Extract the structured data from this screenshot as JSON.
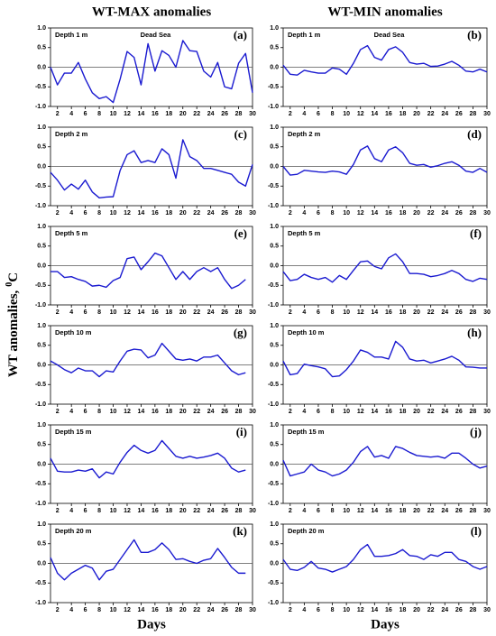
{
  "ylabel": {
    "text": "WT anomalies,",
    "sup": "0",
    "unit": "C"
  },
  "chart_data": [
    {
      "type": "line",
      "title": "WT-MAX anomalies",
      "depth": "Depth 1 m",
      "panel": "(a)",
      "note": "Dead Sea",
      "color": "#1a1ad0",
      "x": [
        1,
        2,
        3,
        4,
        5,
        6,
        7,
        8,
        9,
        10,
        11,
        12,
        13,
        14,
        15,
        16,
        17,
        18,
        19,
        20,
        21,
        22,
        23,
        24,
        25,
        26,
        27,
        28,
        29,
        30
      ],
      "values": [
        0.0,
        -0.45,
        -0.15,
        -0.15,
        0.12,
        -0.3,
        -0.65,
        -0.8,
        -0.75,
        -0.9,
        -0.3,
        0.4,
        0.25,
        -0.45,
        0.6,
        -0.1,
        0.42,
        0.3,
        0.0,
        0.68,
        0.42,
        0.4,
        -0.1,
        -0.25,
        0.12,
        -0.5,
        -0.55,
        0.1,
        0.35,
        -0.65
      ],
      "xlim": [
        1,
        30
      ],
      "xticks": [
        2,
        4,
        6,
        8,
        10,
        12,
        14,
        16,
        18,
        20,
        22,
        24,
        26,
        28,
        30
      ],
      "ylim": [
        -1,
        1
      ],
      "yticks": [
        {
          "value": -1,
          "label": "-1.0"
        },
        {
          "value": -0.5,
          "label": "-0.5"
        },
        {
          "value": 0,
          "label": "0.0"
        },
        {
          "value": 0.5,
          "label": "0.5"
        },
        {
          "value": 1,
          "label": "1.0"
        }
      ],
      "refline": 0
    },
    {
      "type": "line",
      "title": "WT-MIN anomalies",
      "depth": "Depth 1 m",
      "panel": "(b)",
      "note": "Dead Sea",
      "color": "#1a1ad0",
      "x": [
        1,
        2,
        3,
        4,
        5,
        6,
        7,
        8,
        9,
        10,
        11,
        12,
        13,
        14,
        15,
        16,
        17,
        18,
        19,
        20,
        21,
        22,
        23,
        24,
        25,
        26,
        27,
        28,
        29,
        30
      ],
      "values": [
        0.05,
        -0.18,
        -0.2,
        -0.08,
        -0.12,
        -0.15,
        -0.15,
        -0.02,
        -0.05,
        -0.18,
        0.1,
        0.45,
        0.55,
        0.25,
        0.18,
        0.45,
        0.52,
        0.38,
        0.12,
        0.08,
        0.1,
        0.02,
        0.03,
        0.08,
        0.15,
        0.05,
        -0.1,
        -0.12,
        -0.05,
        -0.12
      ],
      "xlim": [
        1,
        30
      ],
      "xticks": [
        2,
        4,
        6,
        8,
        10,
        12,
        14,
        16,
        18,
        20,
        22,
        24,
        26,
        28,
        30
      ],
      "ylim": [
        -1,
        1
      ],
      "yticks": [
        {
          "value": -1,
          "label": "-1.0"
        },
        {
          "value": -0.5,
          "label": "-0.5"
        },
        {
          "value": 0,
          "label": "0.0"
        },
        {
          "value": 0.5,
          "label": "0.5"
        },
        {
          "value": 1,
          "label": "1.0"
        }
      ],
      "refline": 0
    },
    {
      "type": "line",
      "depth": "Depth 2 m",
      "panel": "(c)",
      "color": "#1a1ad0",
      "x": [
        1,
        2,
        3,
        4,
        5,
        6,
        7,
        8,
        9,
        10,
        11,
        12,
        13,
        14,
        15,
        16,
        17,
        18,
        19,
        20,
        21,
        22,
        23,
        24,
        25,
        26,
        27,
        28,
        29,
        30
      ],
      "values": [
        -0.15,
        -0.35,
        -0.6,
        -0.45,
        -0.58,
        -0.35,
        -0.65,
        -0.8,
        -0.78,
        -0.77,
        -0.1,
        0.3,
        0.4,
        0.1,
        0.15,
        0.1,
        0.45,
        0.3,
        -0.3,
        0.68,
        0.25,
        0.15,
        -0.05,
        -0.05,
        -0.1,
        -0.15,
        -0.2,
        -0.4,
        -0.5,
        0.05
      ],
      "xlim": [
        1,
        30
      ],
      "xticks": [
        2,
        4,
        6,
        8,
        10,
        12,
        14,
        16,
        18,
        20,
        22,
        24,
        26,
        28,
        30
      ],
      "ylim": [
        -1,
        1
      ],
      "yticks": [
        {
          "value": -1,
          "label": "-1.0"
        },
        {
          "value": -0.5,
          "label": "-0.5"
        },
        {
          "value": 0,
          "label": "0.0"
        },
        {
          "value": 0.5,
          "label": "0.5"
        },
        {
          "value": 1,
          "label": "1.0"
        }
      ],
      "refline": 0
    },
    {
      "type": "line",
      "depth": "Depth 2 m",
      "panel": "(d)",
      "color": "#1a1ad0",
      "x": [
        1,
        2,
        3,
        4,
        5,
        6,
        7,
        8,
        9,
        10,
        11,
        12,
        13,
        14,
        15,
        16,
        17,
        18,
        19,
        20,
        21,
        22,
        23,
        24,
        25,
        26,
        27,
        28,
        29,
        30
      ],
      "values": [
        0.0,
        -0.22,
        -0.2,
        -0.1,
        -0.12,
        -0.14,
        -0.15,
        -0.12,
        -0.14,
        -0.2,
        0.05,
        0.42,
        0.52,
        0.2,
        0.12,
        0.42,
        0.5,
        0.35,
        0.08,
        0.03,
        0.05,
        -0.02,
        0.02,
        0.08,
        0.12,
        0.03,
        -0.12,
        -0.15,
        -0.05,
        -0.15
      ],
      "xlim": [
        1,
        30
      ],
      "xticks": [
        2,
        4,
        6,
        8,
        10,
        12,
        14,
        16,
        18,
        20,
        22,
        24,
        26,
        28,
        30
      ],
      "ylim": [
        -1,
        1
      ],
      "yticks": [
        {
          "value": -1,
          "label": "-1.0"
        },
        {
          "value": -0.5,
          "label": "-0.5"
        },
        {
          "value": 0,
          "label": "0.0"
        },
        {
          "value": 0.5,
          "label": "0.5"
        },
        {
          "value": 1,
          "label": "1.0"
        }
      ],
      "refline": 0
    },
    {
      "type": "line",
      "depth": "Depth 5 m",
      "panel": "(e)",
      "color": "#1a1ad0",
      "x": [
        1,
        2,
        3,
        4,
        5,
        6,
        7,
        8,
        9,
        10,
        11,
        12,
        13,
        14,
        15,
        16,
        17,
        18,
        19,
        20,
        21,
        22,
        23,
        24,
        25,
        26,
        27,
        28,
        29
      ],
      "values": [
        -0.15,
        -0.15,
        -0.3,
        -0.28,
        -0.35,
        -0.4,
        -0.52,
        -0.5,
        -0.55,
        -0.38,
        -0.3,
        0.18,
        0.22,
        -0.1,
        0.1,
        0.32,
        0.25,
        -0.05,
        -0.35,
        -0.15,
        -0.35,
        -0.15,
        -0.05,
        -0.15,
        -0.05,
        -0.35,
        -0.58,
        -0.5,
        -0.35
      ],
      "xlim": [
        1,
        30
      ],
      "xticks": [
        2,
        4,
        6,
        8,
        10,
        12,
        14,
        16,
        18,
        20,
        22,
        24,
        26,
        28,
        30
      ],
      "ylim": [
        -1,
        1
      ],
      "yticks": [
        {
          "value": -1,
          "label": "-1.0"
        },
        {
          "value": -0.5,
          "label": "-0.5"
        },
        {
          "value": 0,
          "label": "0.0"
        },
        {
          "value": 0.5,
          "label": "0.5"
        },
        {
          "value": 1,
          "label": "1.0"
        }
      ],
      "refline": 0
    },
    {
      "type": "line",
      "depth": "Depth 5 m",
      "panel": "(f)",
      "color": "#1a1ad0",
      "x": [
        1,
        2,
        3,
        4,
        5,
        6,
        7,
        8,
        9,
        10,
        11,
        12,
        13,
        14,
        15,
        16,
        17,
        18,
        19,
        20,
        21,
        22,
        23,
        24,
        25,
        26,
        27,
        28,
        29,
        30
      ],
      "values": [
        -0.15,
        -0.38,
        -0.35,
        -0.22,
        -0.3,
        -0.35,
        -0.3,
        -0.42,
        -0.25,
        -0.35,
        -0.12,
        0.1,
        0.12,
        -0.02,
        -0.08,
        0.2,
        0.3,
        0.1,
        -0.2,
        -0.2,
        -0.22,
        -0.28,
        -0.25,
        -0.2,
        -0.12,
        -0.2,
        -0.35,
        -0.4,
        -0.32,
        -0.35
      ],
      "xlim": [
        1,
        30
      ],
      "xticks": [
        2,
        4,
        6,
        8,
        10,
        12,
        14,
        16,
        18,
        20,
        22,
        24,
        26,
        28,
        30
      ],
      "ylim": [
        -1,
        1
      ],
      "yticks": [
        {
          "value": -1,
          "label": "-1.0"
        },
        {
          "value": -0.5,
          "label": "-0.5"
        },
        {
          "value": 0,
          "label": "0.0"
        },
        {
          "value": 0.5,
          "label": "0.5"
        },
        {
          "value": 1,
          "label": "1.0"
        }
      ],
      "refline": 0
    },
    {
      "type": "line",
      "depth": "Depth 10 m",
      "panel": "(g)",
      "color": "#1a1ad0",
      "x": [
        1,
        2,
        3,
        4,
        5,
        6,
        7,
        8,
        9,
        10,
        11,
        12,
        13,
        14,
        15,
        16,
        17,
        18,
        19,
        20,
        21,
        22,
        23,
        24,
        25,
        26,
        27,
        28,
        29
      ],
      "values": [
        0.1,
        0.0,
        -0.12,
        -0.2,
        -0.08,
        -0.15,
        -0.15,
        -0.3,
        -0.15,
        -0.18,
        0.1,
        0.35,
        0.4,
        0.38,
        0.18,
        0.25,
        0.55,
        0.35,
        0.15,
        0.12,
        0.15,
        0.1,
        0.2,
        0.2,
        0.25,
        0.05,
        -0.15,
        -0.25,
        -0.2
      ],
      "xlim": [
        1,
        30
      ],
      "xticks": [
        2,
        4,
        6,
        8,
        10,
        12,
        14,
        16,
        18,
        20,
        22,
        24,
        26,
        28,
        30
      ],
      "ylim": [
        -1,
        1
      ],
      "yticks": [
        {
          "value": -1,
          "label": "-1.0"
        },
        {
          "value": -0.5,
          "label": "-0.5"
        },
        {
          "value": 0,
          "label": "0.0"
        },
        {
          "value": 0.5,
          "label": "0.5"
        },
        {
          "value": 1,
          "label": "1.0"
        }
      ],
      "refline": 0
    },
    {
      "type": "line",
      "depth": "Depth 10 m",
      "panel": "(h)",
      "color": "#1a1ad0",
      "x": [
        1,
        2,
        3,
        4,
        5,
        6,
        7,
        8,
        9,
        10,
        11,
        12,
        13,
        14,
        15,
        16,
        17,
        18,
        19,
        20,
        21,
        22,
        23,
        24,
        25,
        26,
        27,
        28,
        29,
        30
      ],
      "values": [
        0.1,
        -0.25,
        -0.22,
        0.02,
        -0.02,
        -0.05,
        -0.1,
        -0.3,
        -0.28,
        -0.12,
        0.1,
        0.38,
        0.32,
        0.2,
        0.2,
        0.15,
        0.6,
        0.45,
        0.15,
        0.1,
        0.12,
        0.05,
        0.1,
        0.15,
        0.22,
        0.12,
        -0.05,
        -0.06,
        -0.08,
        -0.08
      ],
      "xlim": [
        1,
        30
      ],
      "xticks": [
        2,
        4,
        6,
        8,
        10,
        12,
        14,
        16,
        18,
        20,
        22,
        24,
        26,
        28,
        30
      ],
      "ylim": [
        -1,
        1
      ],
      "yticks": [
        {
          "value": -1,
          "label": "-1.0"
        },
        {
          "value": -0.5,
          "label": "-0.5"
        },
        {
          "value": 0,
          "label": "0.0"
        },
        {
          "value": 0.5,
          "label": "0.5"
        },
        {
          "value": 1,
          "label": "1.0"
        }
      ],
      "refline": 0
    },
    {
      "type": "line",
      "depth": "Depth 15 m",
      "panel": "(i)",
      "color": "#1a1ad0",
      "x": [
        1,
        2,
        3,
        4,
        5,
        6,
        7,
        8,
        9,
        10,
        11,
        12,
        13,
        14,
        15,
        16,
        17,
        18,
        19,
        20,
        21,
        22,
        23,
        24,
        25,
        26,
        27,
        28,
        29
      ],
      "values": [
        0.15,
        -0.18,
        -0.2,
        -0.2,
        -0.15,
        -0.18,
        -0.12,
        -0.35,
        -0.2,
        -0.25,
        0.05,
        0.3,
        0.48,
        0.35,
        0.28,
        0.35,
        0.6,
        0.4,
        0.2,
        0.15,
        0.2,
        0.15,
        0.18,
        0.22,
        0.28,
        0.15,
        -0.1,
        -0.2,
        -0.15
      ],
      "xlim": [
        1,
        30
      ],
      "xticks": [
        2,
        4,
        6,
        8,
        10,
        12,
        14,
        16,
        18,
        20,
        22,
        24,
        26,
        28,
        30
      ],
      "ylim": [
        -1,
        1
      ],
      "yticks": [
        {
          "value": -1,
          "label": "-1.0"
        },
        {
          "value": -0.5,
          "label": "-0.5"
        },
        {
          "value": 0,
          "label": "0.0"
        },
        {
          "value": 0.5,
          "label": "0.5"
        },
        {
          "value": 1,
          "label": "1.0"
        }
      ],
      "refline": 0
    },
    {
      "type": "line",
      "depth": "Depth 15 m",
      "panel": "(j)",
      "color": "#1a1ad0",
      "x": [
        1,
        2,
        3,
        4,
        5,
        6,
        7,
        8,
        9,
        10,
        11,
        12,
        13,
        14,
        15,
        16,
        17,
        18,
        19,
        20,
        21,
        22,
        23,
        24,
        25,
        26,
        27,
        28,
        29,
        30
      ],
      "values": [
        0.1,
        -0.3,
        -0.25,
        -0.2,
        0.0,
        -0.15,
        -0.2,
        -0.3,
        -0.25,
        -0.15,
        0.05,
        0.32,
        0.45,
        0.18,
        0.22,
        0.15,
        0.45,
        0.4,
        0.3,
        0.22,
        0.2,
        0.18,
        0.2,
        0.15,
        0.28,
        0.28,
        0.15,
        0.0,
        -0.1,
        -0.05
      ],
      "xlim": [
        1,
        30
      ],
      "xticks": [
        2,
        4,
        6,
        8,
        10,
        12,
        14,
        16,
        18,
        20,
        22,
        24,
        26,
        28,
        30
      ],
      "ylim": [
        -1,
        1
      ],
      "yticks": [
        {
          "value": -1,
          "label": "-1.0"
        },
        {
          "value": -0.5,
          "label": "-0.5"
        },
        {
          "value": 0,
          "label": "0.0"
        },
        {
          "value": 0.5,
          "label": "0.5"
        },
        {
          "value": 1,
          "label": "1.0"
        }
      ],
      "refline": 0
    },
    {
      "type": "line",
      "depth": "Depth 20 m",
      "panel": "(k)",
      "xlabel": "Days",
      "color": "#1a1ad0",
      "x": [
        1,
        2,
        3,
        4,
        5,
        6,
        7,
        8,
        9,
        10,
        11,
        12,
        13,
        14,
        15,
        16,
        17,
        18,
        19,
        20,
        21,
        22,
        23,
        24,
        25,
        26,
        27,
        28,
        29
      ],
      "values": [
        0.15,
        -0.25,
        -0.42,
        -0.25,
        -0.15,
        -0.05,
        -0.12,
        -0.42,
        -0.2,
        -0.15,
        0.1,
        0.35,
        0.6,
        0.28,
        0.28,
        0.35,
        0.52,
        0.35,
        0.1,
        0.12,
        0.05,
        0.0,
        0.08,
        0.12,
        0.38,
        0.15,
        -0.1,
        -0.25,
        -0.25
      ],
      "xlim": [
        1,
        30
      ],
      "xticks": [
        2,
        4,
        6,
        8,
        10,
        12,
        14,
        16,
        18,
        20,
        22,
        24,
        26,
        28,
        30
      ],
      "ylim": [
        -1,
        1
      ],
      "yticks": [
        {
          "value": -1,
          "label": "-1.0"
        },
        {
          "value": -0.5,
          "label": "-0.5"
        },
        {
          "value": 0,
          "label": "0.0"
        },
        {
          "value": 0.5,
          "label": "0.5"
        },
        {
          "value": 1,
          "label": "1.0"
        }
      ],
      "refline": 0
    },
    {
      "type": "line",
      "depth": "Depth 20 m",
      "panel": "(l)",
      "xlabel": "Days",
      "color": "#1a1ad0",
      "x": [
        1,
        2,
        3,
        4,
        5,
        6,
        7,
        8,
        9,
        10,
        11,
        12,
        13,
        14,
        15,
        16,
        17,
        18,
        19,
        20,
        21,
        22,
        23,
        24,
        25,
        26,
        27,
        28,
        29,
        30
      ],
      "values": [
        0.1,
        -0.15,
        -0.18,
        -0.1,
        0.05,
        -0.12,
        -0.15,
        -0.22,
        -0.15,
        -0.08,
        0.1,
        0.35,
        0.48,
        0.18,
        0.18,
        0.2,
        0.25,
        0.35,
        0.2,
        0.18,
        0.1,
        0.22,
        0.18,
        0.28,
        0.28,
        0.1,
        0.05,
        -0.08,
        -0.15,
        -0.08
      ],
      "xlim": [
        1,
        30
      ],
      "xticks": [
        2,
        4,
        6,
        8,
        10,
        12,
        14,
        16,
        18,
        20,
        22,
        24,
        26,
        28,
        30
      ],
      "ylim": [
        -1,
        1
      ],
      "yticks": [
        {
          "value": -1,
          "label": "-1.0"
        },
        {
          "value": -0.5,
          "label": "-0.5"
        },
        {
          "value": 0,
          "label": "0.0"
        },
        {
          "value": 0.5,
          "label": "0.5"
        },
        {
          "value": 1,
          "label": "1.0"
        }
      ],
      "refline": 0
    }
  ]
}
